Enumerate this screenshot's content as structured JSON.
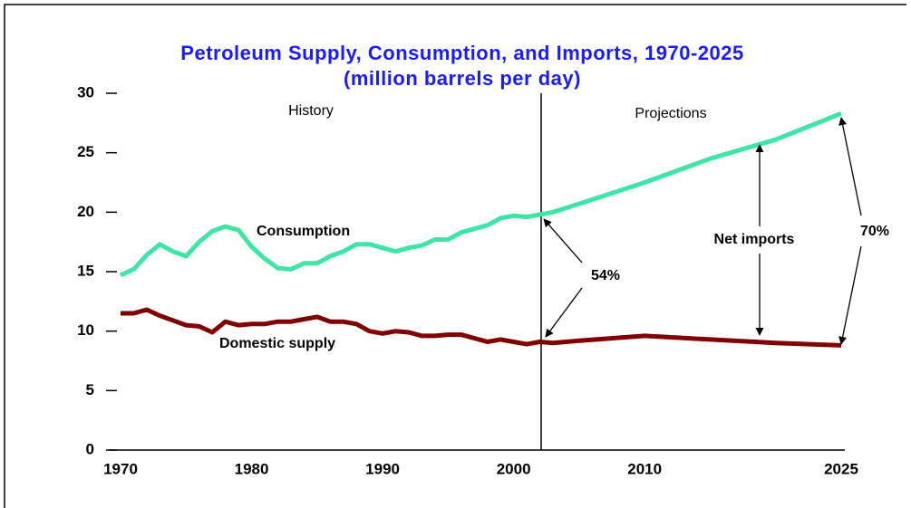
{
  "chart_data": {
    "type": "line",
    "title": "Petroleum Supply, Consumption, and Imports, 1970-2025",
    "subtitle": "(million barrels per day)",
    "x": [
      1970,
      1971,
      1972,
      1973,
      1974,
      1975,
      1976,
      1977,
      1978,
      1979,
      1980,
      1981,
      1982,
      1983,
      1984,
      1985,
      1986,
      1987,
      1988,
      1989,
      1990,
      1991,
      1992,
      1993,
      1994,
      1995,
      1996,
      1997,
      1998,
      1999,
      2000,
      2001,
      2002,
      2003,
      2005,
      2010,
      2015,
      2020,
      2025
    ],
    "series": [
      {
        "name": "Consumption",
        "color": "#3de6a6",
        "values": [
          14.7,
          15.2,
          16.4,
          17.3,
          16.7,
          16.3,
          17.5,
          18.4,
          18.8,
          18.5,
          17.1,
          16.1,
          15.3,
          15.2,
          15.7,
          15.7,
          16.3,
          16.7,
          17.3,
          17.3,
          17.0,
          16.7,
          17.0,
          17.2,
          17.7,
          17.7,
          18.3,
          18.6,
          18.9,
          19.5,
          19.7,
          19.6,
          19.8,
          20.0,
          20.7,
          22.5,
          24.5,
          26.1,
          28.3
        ]
      },
      {
        "name": "Domestic supply",
        "color": "#800000",
        "values": [
          11.5,
          11.5,
          11.8,
          11.3,
          10.9,
          10.5,
          10.4,
          9.9,
          10.8,
          10.5,
          10.6,
          10.6,
          10.8,
          10.8,
          11.0,
          11.2,
          10.8,
          10.8,
          10.6,
          10.0,
          9.8,
          10.0,
          9.9,
          9.6,
          9.6,
          9.7,
          9.7,
          9.4,
          9.1,
          9.3,
          9.1,
          8.9,
          9.1,
          9.0,
          9.2,
          9.6,
          9.3,
          9.0,
          8.8
        ]
      }
    ],
    "xlim": [
      1970,
      2025
    ],
    "xticks": [
      1970,
      1980,
      1990,
      2000,
      2010,
      2025
    ],
    "ylim": [
      0,
      30
    ],
    "yticks": [
      0,
      5,
      10,
      15,
      20,
      25,
      30
    ],
    "annotations": [
      "History",
      "Projections",
      "54%",
      "Net imports",
      "70%"
    ]
  }
}
